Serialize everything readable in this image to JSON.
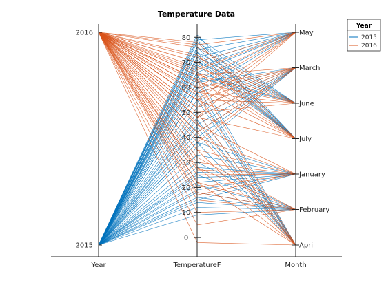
{
  "chart_data": {
    "type": "line",
    "subtype": "parallel-coordinates",
    "title": "Temperature Data",
    "coordinates": [
      "Year",
      "TemperatureF",
      "Month"
    ],
    "axes": {
      "Year": {
        "ticks": [
          "2015",
          "2016"
        ]
      },
      "TemperatureF": {
        "ticks": [
          0,
          10,
          20,
          30,
          40,
          50,
          60,
          70,
          80
        ],
        "range": [
          -3,
          82
        ]
      },
      "Month": {
        "ticks": [
          "April",
          "February",
          "January",
          "July",
          "June",
          "March",
          "May"
        ]
      }
    },
    "legend": {
      "title": "Year",
      "location": "top-right"
    },
    "series": [
      {
        "name": "2015",
        "color": "#0072BD",
        "observations": [
          [
            "2015",
            12,
            "February"
          ],
          [
            "2015",
            18,
            "February"
          ],
          [
            "2015",
            21,
            "February"
          ],
          [
            "2015",
            9,
            "February"
          ],
          [
            "2015",
            25,
            "February"
          ],
          [
            "2015",
            14,
            "February"
          ],
          [
            "2015",
            30,
            "February"
          ],
          [
            "2015",
            16,
            "February"
          ],
          [
            "2015",
            22,
            "January"
          ],
          [
            "2015",
            28,
            "January"
          ],
          [
            "2015",
            19,
            "January"
          ],
          [
            "2015",
            33,
            "January"
          ],
          [
            "2015",
            15,
            "January"
          ],
          [
            "2015",
            26,
            "January"
          ],
          [
            "2015",
            38,
            "January"
          ],
          [
            "2015",
            24,
            "January"
          ],
          [
            "2015",
            40,
            "March"
          ],
          [
            "2015",
            45,
            "March"
          ],
          [
            "2015",
            52,
            "March"
          ],
          [
            "2015",
            36,
            "March"
          ],
          [
            "2015",
            58,
            "March"
          ],
          [
            "2015",
            48,
            "March"
          ],
          [
            "2015",
            42,
            "March"
          ],
          [
            "2015",
            62,
            "March"
          ],
          [
            "2015",
            50,
            "April"
          ],
          [
            "2015",
            55,
            "April"
          ],
          [
            "2015",
            60,
            "April"
          ],
          [
            "2015",
            47,
            "April"
          ],
          [
            "2015",
            65,
            "April"
          ],
          [
            "2015",
            44,
            "April"
          ],
          [
            "2015",
            38,
            "April"
          ],
          [
            "2015",
            58,
            "April"
          ],
          [
            "2015",
            62,
            "May"
          ],
          [
            "2015",
            68,
            "May"
          ],
          [
            "2015",
            72,
            "May"
          ],
          [
            "2015",
            58,
            "May"
          ],
          [
            "2015",
            75,
            "May"
          ],
          [
            "2015",
            66,
            "May"
          ],
          [
            "2015",
            79,
            "May"
          ],
          [
            "2015",
            70,
            "May"
          ],
          [
            "2015",
            70,
            "June"
          ],
          [
            "2015",
            74,
            "June"
          ],
          [
            "2015",
            78,
            "June"
          ],
          [
            "2015",
            66,
            "June"
          ],
          [
            "2015",
            80,
            "June"
          ],
          [
            "2015",
            72,
            "June"
          ],
          [
            "2015",
            64,
            "June"
          ],
          [
            "2015",
            76,
            "June"
          ],
          [
            "2015",
            76,
            "July"
          ],
          [
            "2015",
            79,
            "July"
          ],
          [
            "2015",
            72,
            "July"
          ],
          [
            "2015",
            81,
            "July"
          ],
          [
            "2015",
            69,
            "July"
          ],
          [
            "2015",
            74,
            "July"
          ],
          [
            "2015",
            78,
            "July"
          ],
          [
            "2015",
            71,
            "July"
          ]
        ]
      },
      {
        "name": "2016",
        "color": "#D95319",
        "observations": [
          [
            "2016",
            5,
            "February"
          ],
          [
            "2016",
            15,
            "February"
          ],
          [
            "2016",
            22,
            "February"
          ],
          [
            "2016",
            28,
            "February"
          ],
          [
            "2016",
            -2,
            "April"
          ],
          [
            "2016",
            18,
            "February"
          ],
          [
            "2016",
            10,
            "February"
          ],
          [
            "2016",
            32,
            "February"
          ],
          [
            "2016",
            25,
            "January"
          ],
          [
            "2016",
            30,
            "January"
          ],
          [
            "2016",
            20,
            "January"
          ],
          [
            "2016",
            35,
            "January"
          ],
          [
            "2016",
            17,
            "January"
          ],
          [
            "2016",
            40,
            "January"
          ],
          [
            "2016",
            27,
            "January"
          ],
          [
            "2016",
            45,
            "January"
          ],
          [
            "2016",
            48,
            "March"
          ],
          [
            "2016",
            55,
            "March"
          ],
          [
            "2016",
            60,
            "March"
          ],
          [
            "2016",
            42,
            "March"
          ],
          [
            "2016",
            65,
            "March"
          ],
          [
            "2016",
            52,
            "March"
          ],
          [
            "2016",
            38,
            "March"
          ],
          [
            "2016",
            58,
            "March"
          ],
          [
            "2016",
            28,
            "April"
          ],
          [
            "2016",
            35,
            "April"
          ],
          [
            "2016",
            42,
            "April"
          ],
          [
            "2016",
            50,
            "April"
          ],
          [
            "2016",
            57,
            "April"
          ],
          [
            "2016",
            22,
            "April"
          ],
          [
            "2016",
            46,
            "April"
          ],
          [
            "2016",
            63,
            "April"
          ],
          [
            "2016",
            55,
            "May"
          ],
          [
            "2016",
            63,
            "May"
          ],
          [
            "2016",
            70,
            "May"
          ],
          [
            "2016",
            48,
            "May"
          ],
          [
            "2016",
            77,
            "May"
          ],
          [
            "2016",
            60,
            "May"
          ],
          [
            "2016",
            67,
            "May"
          ],
          [
            "2016",
            52,
            "May"
          ],
          [
            "2016",
            58,
            "June"
          ],
          [
            "2016",
            65,
            "June"
          ],
          [
            "2016",
            72,
            "June"
          ],
          [
            "2016",
            50,
            "June"
          ],
          [
            "2016",
            76,
            "June"
          ],
          [
            "2016",
            62,
            "June"
          ],
          [
            "2016",
            68,
            "June"
          ],
          [
            "2016",
            55,
            "June"
          ],
          [
            "2016",
            60,
            "July"
          ],
          [
            "2016",
            66,
            "July"
          ],
          [
            "2016",
            73,
            "July"
          ],
          [
            "2016",
            55,
            "July"
          ],
          [
            "2016",
            78,
            "July"
          ],
          [
            "2016",
            48,
            "July"
          ],
          [
            "2016",
            70,
            "July"
          ],
          [
            "2016",
            63,
            "July"
          ]
        ]
      }
    ]
  }
}
